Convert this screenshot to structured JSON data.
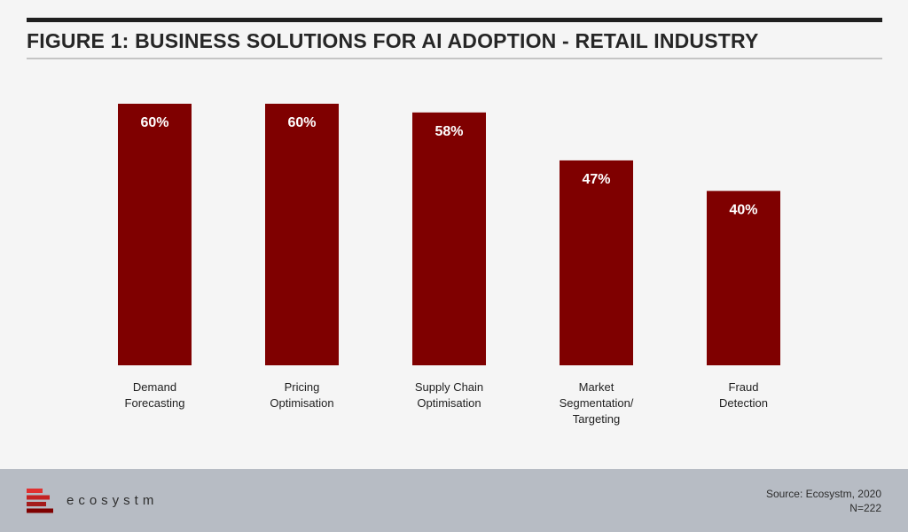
{
  "header": {
    "title": "FIGURE 1: BUSINESS SOLUTIONS FOR AI ADOPTION - RETAIL INDUSTRY"
  },
  "chart_data": {
    "type": "bar",
    "title": "FIGURE 1: BUSINESS SOLUTIONS FOR AI ADOPTION - RETAIL INDUSTRY",
    "categories": [
      [
        "Demand",
        "Forecasting"
      ],
      [
        "Pricing",
        "Optimisation"
      ],
      [
        "Supply Chain",
        "Optimisation"
      ],
      [
        "Market",
        "Segmentation/",
        "Targeting"
      ],
      [
        "Fraud",
        "Detection"
      ]
    ],
    "values": [
      60,
      60,
      58,
      47,
      40
    ],
    "value_labels": [
      "60%",
      "60%",
      "58%",
      "47%",
      "40%"
    ],
    "ylim": [
      0,
      60
    ],
    "grid": false,
    "bar_color": "#7f0000",
    "label_color": "#ffffff"
  },
  "footer": {
    "logo_text": "ecosystm",
    "logo_colors": [
      "#e03030",
      "#c42222",
      "#a51c1c",
      "#7f0000"
    ],
    "source": "Source: Ecosystm, 2020",
    "sample": "N=222"
  }
}
